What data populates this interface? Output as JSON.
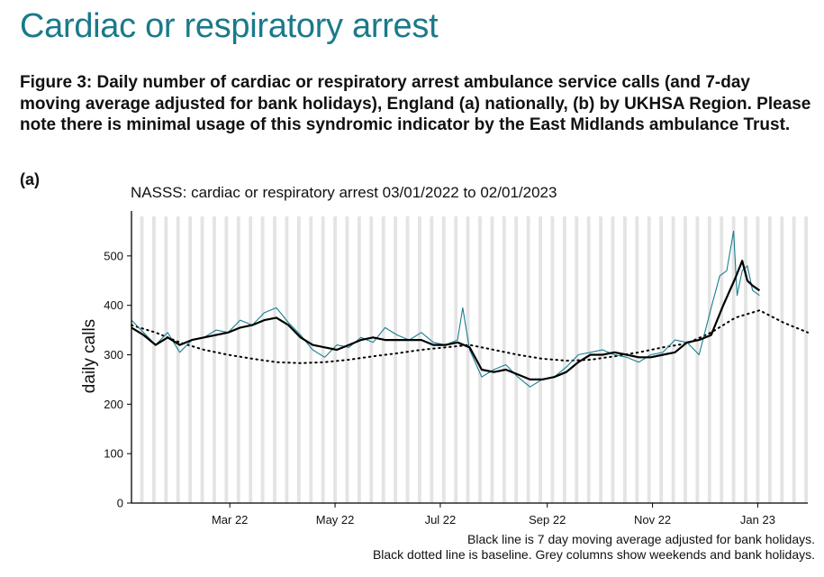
{
  "page": {
    "title": "Cardiac or respiratory arrest",
    "caption": "Figure 3: Daily number of cardiac or respiratory arrest ambulance service calls (and 7-day moving average adjusted for bank holidays), England (a) nationally, (b) by UKHSA Region. Please note there is minimal usage of this syndromic indicator by the East Midlands ambulance Trust.",
    "panel_label": "(a)"
  },
  "colors": {
    "daily": "#1a7f8f",
    "moving_average": "#000000",
    "baseline": "#000000",
    "weekend_columns": "#e4e4e4",
    "title": "#1a7a8a"
  },
  "chart_data": {
    "type": "line",
    "title": "NASSS: cardiac or respiratory arrest 03/01/2022 to 02/01/2023",
    "xlabel": "",
    "ylabel": "daily calls",
    "xlim": [
      "2022-01-03",
      "2023-01-30"
    ],
    "ylim": [
      0,
      580
    ],
    "yticks": [
      0,
      100,
      200,
      300,
      400,
      500
    ],
    "xticks": [
      {
        "date": "2022-03-01",
        "label": "Mar 22"
      },
      {
        "date": "2022-05-01",
        "label": "May 22"
      },
      {
        "date": "2022-07-01",
        "label": "Jul 22"
      },
      {
        "date": "2022-09-01",
        "label": "Sep 22"
      },
      {
        "date": "2022-11-01",
        "label": "Nov 22"
      },
      {
        "date": "2023-01-01",
        "label": "Jan 23"
      }
    ],
    "grid": false,
    "weekend_shading": true,
    "series": [
      {
        "key": "daily",
        "style": "thin-teal",
        "x": [
          "2022-01-03",
          "2022-01-10",
          "2022-01-17",
          "2022-01-24",
          "2022-01-31",
          "2022-02-07",
          "2022-02-14",
          "2022-02-21",
          "2022-02-28",
          "2022-03-07",
          "2022-03-14",
          "2022-03-21",
          "2022-03-28",
          "2022-04-04",
          "2022-04-11",
          "2022-04-18",
          "2022-04-25",
          "2022-05-02",
          "2022-05-09",
          "2022-05-16",
          "2022-05-23",
          "2022-05-30",
          "2022-06-06",
          "2022-06-13",
          "2022-06-20",
          "2022-06-27",
          "2022-07-04",
          "2022-07-11",
          "2022-07-14",
          "2022-07-18",
          "2022-07-25",
          "2022-08-01",
          "2022-08-08",
          "2022-08-15",
          "2022-08-22",
          "2022-08-29",
          "2022-09-05",
          "2022-09-12",
          "2022-09-19",
          "2022-09-26",
          "2022-10-03",
          "2022-10-10",
          "2022-10-17",
          "2022-10-24",
          "2022-10-31",
          "2022-11-07",
          "2022-11-14",
          "2022-11-21",
          "2022-11-28",
          "2022-12-05",
          "2022-12-10",
          "2022-12-14",
          "2022-12-18",
          "2022-12-20",
          "2022-12-23",
          "2022-12-26",
          "2022-12-29",
          "2023-01-02"
        ],
        "y": [
          370,
          345,
          320,
          345,
          305,
          330,
          335,
          350,
          345,
          370,
          360,
          385,
          395,
          365,
          340,
          310,
          295,
          320,
          315,
          335,
          325,
          355,
          340,
          330,
          345,
          325,
          320,
          330,
          395,
          310,
          255,
          270,
          280,
          255,
          235,
          250,
          255,
          275,
          300,
          305,
          310,
          300,
          295,
          285,
          300,
          305,
          330,
          325,
          300,
          395,
          460,
          470,
          550,
          420,
          470,
          480,
          430,
          420
        ]
      },
      {
        "key": "moving_average",
        "style": "bold-black",
        "x": [
          "2022-01-03",
          "2022-01-10",
          "2022-01-17",
          "2022-01-24",
          "2022-01-31",
          "2022-02-07",
          "2022-02-14",
          "2022-02-21",
          "2022-02-28",
          "2022-03-07",
          "2022-03-14",
          "2022-03-21",
          "2022-03-28",
          "2022-04-04",
          "2022-04-11",
          "2022-04-18",
          "2022-04-25",
          "2022-05-02",
          "2022-05-09",
          "2022-05-16",
          "2022-05-23",
          "2022-05-30",
          "2022-06-06",
          "2022-06-13",
          "2022-06-20",
          "2022-06-27",
          "2022-07-04",
          "2022-07-11",
          "2022-07-18",
          "2022-07-25",
          "2022-08-01",
          "2022-08-08",
          "2022-08-15",
          "2022-08-22",
          "2022-08-29",
          "2022-09-05",
          "2022-09-12",
          "2022-09-19",
          "2022-09-26",
          "2022-10-03",
          "2022-10-10",
          "2022-10-17",
          "2022-10-24",
          "2022-10-31",
          "2022-11-07",
          "2022-11-14",
          "2022-11-21",
          "2022-11-28",
          "2022-12-05",
          "2022-12-12",
          "2022-12-19",
          "2022-12-23",
          "2022-12-26",
          "2022-12-29",
          "2023-01-02"
        ],
        "y": [
          355,
          340,
          320,
          335,
          320,
          330,
          335,
          340,
          345,
          355,
          360,
          370,
          375,
          360,
          335,
          320,
          315,
          310,
          320,
          330,
          335,
          330,
          330,
          330,
          330,
          320,
          320,
          325,
          315,
          270,
          265,
          270,
          260,
          250,
          250,
          255,
          265,
          285,
          300,
          300,
          305,
          300,
          295,
          295,
          300,
          305,
          325,
          330,
          340,
          400,
          455,
          490,
          450,
          440,
          430
        ]
      },
      {
        "key": "baseline",
        "style": "dotted-black",
        "x": [
          "2022-01-03",
          "2022-01-17",
          "2022-01-31",
          "2022-02-14",
          "2022-02-28",
          "2022-03-14",
          "2022-03-28",
          "2022-04-11",
          "2022-04-25",
          "2022-05-09",
          "2022-05-23",
          "2022-06-06",
          "2022-06-20",
          "2022-07-04",
          "2022-07-18",
          "2022-08-01",
          "2022-08-15",
          "2022-08-29",
          "2022-09-12",
          "2022-09-26",
          "2022-10-10",
          "2022-10-24",
          "2022-11-07",
          "2022-11-21",
          "2022-12-05",
          "2022-12-19",
          "2023-01-02",
          "2023-01-16",
          "2023-01-30"
        ],
        "y": [
          360,
          345,
          325,
          310,
          300,
          292,
          285,
          283,
          285,
          290,
          297,
          303,
          310,
          315,
          320,
          310,
          300,
          292,
          288,
          290,
          297,
          305,
          315,
          323,
          345,
          375,
          390,
          365,
          345
        ]
      }
    ]
  },
  "footer": {
    "line1": "Black line is 7 day moving average adjusted for bank holidays.",
    "line2": "Black dotted line is baseline. Grey columns show weekends and bank holidays."
  }
}
